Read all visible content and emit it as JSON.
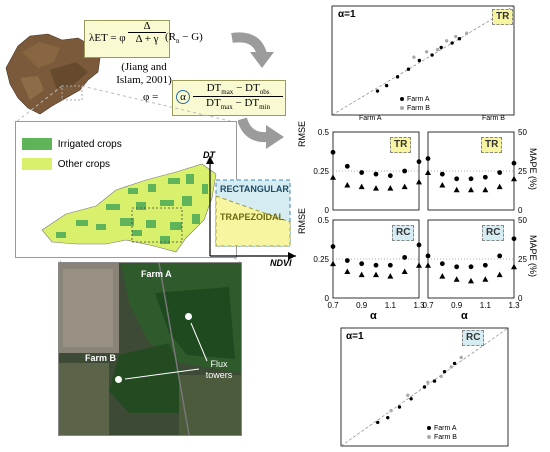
{
  "formula1": {
    "lhs": "λET = φ",
    "num": "Δ",
    "den": "Δ + γ",
    "rhs": "(R",
    "rhs_sub": "n",
    "rhs_end": " − G)"
  },
  "citation": {
    "line1": "(Jiang and",
    "line2": "Islam, 2001)"
  },
  "formula2": {
    "lhs": "φ =",
    "alpha": "α",
    "num": "DT",
    "num_sub1": "max",
    "num_mid": " − DT",
    "num_sub2": "obs",
    "den": "DT",
    "den_sub1": "max",
    "den_mid": " − DT",
    "den_sub2": "min"
  },
  "legend": {
    "irrigated": "Irrigated crops",
    "other": "Other crops",
    "irrigated_color": "#5fb45a",
    "other_color": "#d9f06c"
  },
  "trapezoid": {
    "y_label": "DT",
    "x_label": "NDVI",
    "rectangular": "RECTANGULAR",
    "trapezoidal": "TRAPEZOIDAL"
  },
  "satellite": {
    "farm_a": "Farm A",
    "farm_b": "Farm B",
    "towers": "Flux towers"
  },
  "top_scatter": {
    "alpha_label": "α=1",
    "tag": "TR",
    "x_left": "Farm A",
    "x_right": "Farm B",
    "legend_a": "Farm A",
    "legend_b": "Farm B"
  },
  "bottom_scatter": {
    "alpha_label": "α=1",
    "tag": "RC",
    "legend_a": "Farm A",
    "legend_b": "Farm B"
  },
  "panels": {
    "ylabel_left": "RMSE",
    "ylabel_right": "MAPE (%)",
    "xlabel": "α",
    "left_ticks": [
      "0",
      "0.25",
      "0.5"
    ],
    "right_ticks": [
      "0",
      "25",
      "50"
    ],
    "x_ticks_left": [
      "0.7",
      "0.9",
      "1.1",
      "1.3"
    ],
    "x_ticks_right": [
      "0.7",
      "0.9",
      "1.1",
      "1.3"
    ],
    "tag_tr": "TR",
    "tag_rc": "RC"
  },
  "chart_data": [
    {
      "type": "scatter",
      "title": "α=1",
      "annotation": "TR",
      "series": [
        {
          "name": "Farm A",
          "points": [
            [
              0.25,
              0.22
            ],
            [
              0.3,
              0.27
            ],
            [
              0.36,
              0.35
            ],
            [
              0.42,
              0.42
            ],
            [
              0.48,
              0.5
            ],
            [
              0.55,
              0.55
            ],
            [
              0.6,
              0.62
            ],
            [
              0.66,
              0.66
            ],
            [
              0.7,
              0.7
            ]
          ]
        },
        {
          "name": "Farm B",
          "points": [
            [
              0.45,
              0.53
            ],
            [
              0.52,
              0.58
            ],
            [
              0.58,
              0.6
            ],
            [
              0.63,
              0.68
            ],
            [
              0.68,
              0.72
            ],
            [
              0.74,
              0.75
            ]
          ]
        }
      ]
    },
    {
      "type": "scatter",
      "title": "α=1",
      "annotation": "RC",
      "series": [
        {
          "name": "Farm A",
          "points": [
            [
              0.22,
              0.2
            ],
            [
              0.28,
              0.24
            ],
            [
              0.35,
              0.33
            ],
            [
              0.42,
              0.4
            ],
            [
              0.5,
              0.5
            ],
            [
              0.56,
              0.55
            ],
            [
              0.62,
              0.63
            ],
            [
              0.68,
              0.7
            ]
          ]
        },
        {
          "name": "Farm B",
          "points": [
            [
              0.3,
              0.3
            ],
            [
              0.4,
              0.43
            ],
            [
              0.52,
              0.54
            ],
            [
              0.6,
              0.59
            ],
            [
              0.66,
              0.67
            ],
            [
              0.72,
              0.75
            ]
          ]
        }
      ]
    },
    {
      "type": "scatter",
      "annotation": "TR",
      "xlabel": "α",
      "ylabel": "RMSE",
      "ylabel_right": "MAPE (%)",
      "x": [
        0.7,
        0.8,
        0.9,
        1.0,
        1.1,
        1.2,
        1.3
      ],
      "series": [
        {
          "name": "RMSE",
          "values": [
            0.37,
            0.28,
            0.24,
            0.23,
            0.22,
            0.25,
            0.31
          ]
        },
        {
          "name": "MAPE",
          "values": [
            21,
            16,
            15,
            14,
            14,
            15,
            18
          ]
        }
      ],
      "ylim": [
        0,
        0.5
      ],
      "ylim_right": [
        0,
        50
      ]
    },
    {
      "type": "scatter",
      "annotation": "TR",
      "x": [
        0.7,
        0.8,
        0.9,
        1.0,
        1.1,
        1.2,
        1.3
      ],
      "series": [
        {
          "name": "RMSE",
          "values": [
            0.33,
            0.23,
            0.2,
            0.2,
            0.21,
            0.24,
            0.3
          ]
        },
        {
          "name": "MAPE",
          "values": [
            24,
            16,
            13,
            13,
            13,
            15,
            20
          ]
        }
      ],
      "ylim": [
        0,
        0.5
      ],
      "ylim_right": [
        0,
        50
      ]
    },
    {
      "type": "scatter",
      "annotation": "RC",
      "x": [
        0.7,
        0.8,
        0.9,
        1.0,
        1.1,
        1.2,
        1.3
      ],
      "series": [
        {
          "name": "RMSE",
          "values": [
            0.33,
            0.24,
            0.22,
            0.21,
            0.21,
            0.26,
            0.34
          ]
        },
        {
          "name": "MAPE",
          "values": [
            22,
            17,
            15,
            15,
            14,
            17,
            21
          ]
        }
      ],
      "ylim": [
        0,
        0.5
      ],
      "ylim_right": [
        0,
        50
      ]
    },
    {
      "type": "scatter",
      "annotation": "RC",
      "x": [
        0.7,
        0.8,
        0.9,
        1.0,
        1.1,
        1.2,
        1.3
      ],
      "series": [
        {
          "name": "RMSE",
          "values": [
            0.27,
            0.22,
            0.2,
            0.2,
            0.21,
            0.27,
            0.38
          ]
        },
        {
          "name": "MAPE",
          "values": [
            21,
            14,
            12,
            11,
            12,
            15,
            20
          ]
        }
      ],
      "ylim": [
        0,
        0.5
      ],
      "ylim_right": [
        0,
        50
      ]
    }
  ]
}
